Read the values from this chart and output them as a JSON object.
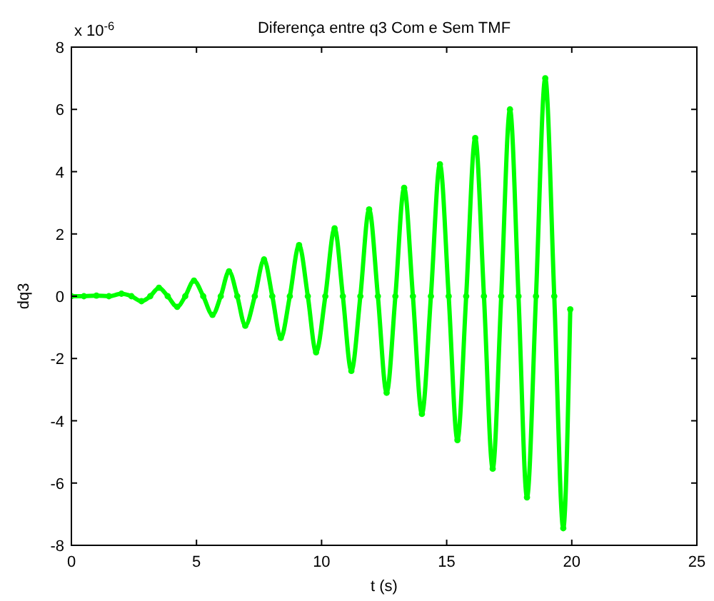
{
  "chart_data": {
    "type": "line",
    "title": "Diferença entre q3 Com e Sem TMF",
    "xlabel": "t (s)",
    "ylabel": "dq3",
    "annotations": [
      "x 10$^{-6}$"
    ],
    "x": [
      0,
      0.5,
      1,
      1.5,
      2,
      2.4,
      2.8,
      3.15,
      3.5,
      3.85,
      4.23,
      4.55,
      4.9,
      5.27,
      5.64,
      5.97,
      6.3,
      6.63,
      6.95,
      7.33,
      7.7,
      8.03,
      8.37,
      8.73,
      9.1,
      9.45,
      9.78,
      10.15,
      10.52,
      10.85,
      11.19,
      11.55,
      11.9,
      12.25,
      12.6,
      12.95,
      13.3,
      13.65,
      14.01,
      14.37,
      14.73,
      15.08,
      15.43,
      15.78,
      16.14,
      16.49,
      16.84,
      17.18,
      17.53,
      17.87,
      18.21,
      18.57,
      18.94,
      19.3,
      19.66,
      19.94
    ],
    "series": [
      {
        "color": "#00ff00",
        "values": [
          0,
          0,
          0.02,
          0,
          0.08,
          0,
          -0.16,
          0,
          0.27,
          0,
          -0.34,
          0,
          0.5,
          0,
          -0.6,
          0,
          0.8,
          0,
          -0.95,
          0,
          1.18,
          0,
          -1.34,
          0,
          1.64,
          0,
          -1.8,
          0,
          2.18,
          0,
          -2.4,
          0,
          2.79,
          0,
          -3.1,
          0,
          3.48,
          0,
          -3.78,
          0,
          4.24,
          0,
          -4.62,
          0,
          5.08,
          0,
          -5.54,
          0,
          6.0,
          0,
          -6.46,
          0,
          7.0,
          0,
          -7.45,
          -0.42
        ]
      }
    ],
    "xlim": [
      0,
      25
    ],
    "xticks": [
      0,
      5,
      10,
      15,
      20,
      25
    ],
    "ylim": [
      -8,
      8
    ],
    "yticks": [
      -8,
      -6,
      -4,
      -2,
      0,
      2,
      4,
      6,
      8
    ],
    "grid": false,
    "marker": "circle",
    "line_style": "solid"
  }
}
